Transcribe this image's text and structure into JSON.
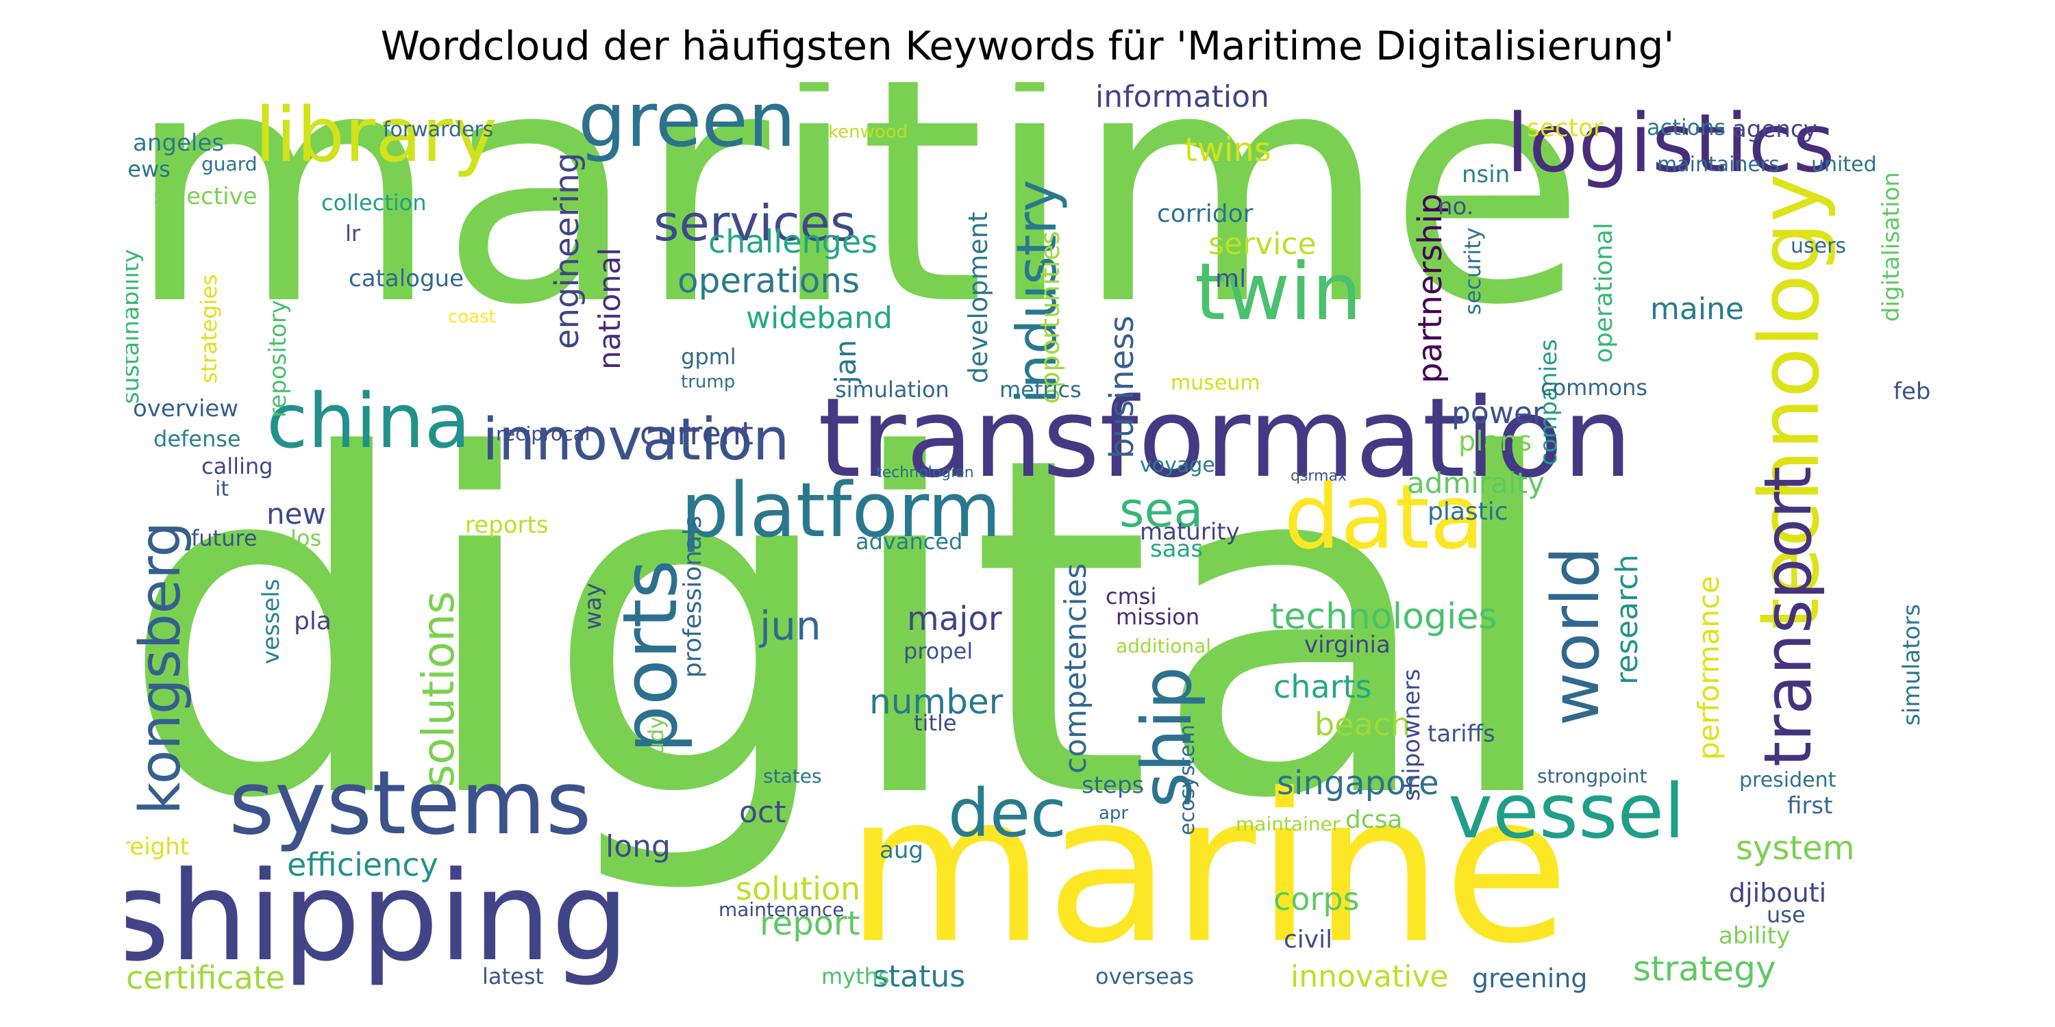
{
  "title": "Wordcloud der häufigsten Keywords für 'Maritime Digitalisierung'",
  "words": [
    {
      "text": "maritime",
      "color": "#7ad151"
    },
    {
      "text": "digital",
      "color": "#7ad151"
    },
    {
      "text": "marine",
      "color": "#fde725"
    },
    {
      "text": "transformation",
      "color": "#443983"
    },
    {
      "text": "shipping",
      "color": "#414487"
    },
    {
      "text": "logistics",
      "color": "#472d7b"
    },
    {
      "text": "technology",
      "color": "#dde318"
    },
    {
      "text": "library",
      "color": "#d2e21b"
    },
    {
      "text": "green",
      "color": "#2c728e"
    },
    {
      "text": "platform",
      "color": "#2a788e"
    },
    {
      "text": "data",
      "color": "#fde725"
    },
    {
      "text": "systems",
      "color": "#3b528b"
    },
    {
      "text": "china",
      "color": "#21918c"
    },
    {
      "text": "twin",
      "color": "#4ac16d"
    },
    {
      "text": "ports",
      "color": "#2d708e"
    },
    {
      "text": "innovation",
      "color": "#3b528b"
    },
    {
      "text": "vessel",
      "color": "#1f9e89"
    },
    {
      "text": "kongsberg",
      "color": "#355f8d"
    },
    {
      "text": "transport",
      "color": "#46337e"
    },
    {
      "text": "world",
      "color": "#31688e"
    },
    {
      "text": "ship",
      "color": "#2c728e"
    },
    {
      "text": "dec",
      "color": "#287c8e"
    },
    {
      "text": "industry",
      "color": "#2a788e"
    },
    {
      "text": "services",
      "color": "#3e4a89"
    },
    {
      "text": "sea",
      "color": "#35b779"
    },
    {
      "text": "solutions",
      "color": "#7ad151"
    },
    {
      "text": "technologies",
      "color": "#4ac16d"
    },
    {
      "text": "operations",
      "color": "#2a788e"
    },
    {
      "text": "challenges",
      "color": "#21a685"
    },
    {
      "text": "wideband",
      "color": "#22a884"
    },
    {
      "text": "information",
      "color": "#414487"
    },
    {
      "text": "twins",
      "color": "#d2e21b"
    },
    {
      "text": "engineering",
      "color": "#414487"
    },
    {
      "text": "national",
      "color": "#472d7b"
    },
    {
      "text": "current",
      "color": "#3e4a89"
    },
    {
      "text": "partnership",
      "color": "#440154"
    },
    {
      "text": "business",
      "color": "#355f8d"
    },
    {
      "text": "development",
      "color": "#2a788e"
    },
    {
      "text": "opportunities",
      "color": "#a0da39"
    },
    {
      "text": "competencies",
      "color": "#31688e"
    },
    {
      "text": "research",
      "color": "#21918c"
    },
    {
      "text": "performance",
      "color": "#dde318"
    },
    {
      "text": "maine",
      "color": "#287c8e"
    },
    {
      "text": "power",
      "color": "#3b528b"
    },
    {
      "text": "plans",
      "color": "#7ad151"
    },
    {
      "text": "admiralty",
      "color": "#5ec962"
    },
    {
      "text": "singapore",
      "color": "#2c728e"
    },
    {
      "text": "number",
      "color": "#2a788e"
    },
    {
      "text": "jun",
      "color": "#31688e"
    },
    {
      "text": "major",
      "color": "#414487"
    },
    {
      "text": "charts",
      "color": "#22a884"
    },
    {
      "text": "beach",
      "color": "#a0da39"
    },
    {
      "text": "corps",
      "color": "#5ec962"
    },
    {
      "text": "system",
      "color": "#7ad151"
    },
    {
      "text": "strategy",
      "color": "#5ec962"
    },
    {
      "text": "status",
      "color": "#287c8e"
    },
    {
      "text": "certificate",
      "color": "#a0da39"
    },
    {
      "text": "efficiency",
      "color": "#21918c"
    },
    {
      "text": "report",
      "color": "#5ec962"
    },
    {
      "text": "solution",
      "color": "#bddf26"
    },
    {
      "text": "innovative",
      "color": "#bddf26"
    },
    {
      "text": "greening",
      "color": "#31688e"
    },
    {
      "text": "oct",
      "color": "#3e4a89"
    },
    {
      "text": "long",
      "color": "#3e4a89"
    },
    {
      "text": "new",
      "color": "#3e4a89"
    },
    {
      "text": "jan",
      "color": "#2a788e"
    },
    {
      "text": "service",
      "color": "#bddf26"
    },
    {
      "text": "corridor",
      "color": "#2c728e"
    },
    {
      "text": "ml",
      "color": "#3b528b"
    },
    {
      "text": "sector",
      "color": "#dde318"
    },
    {
      "text": "actions",
      "color": "#2a788e"
    },
    {
      "text": "agency",
      "color": "#414487"
    },
    {
      "text": "nsin",
      "color": "#26828e"
    },
    {
      "text": "no.",
      "color": "#3b528b"
    },
    {
      "text": "security",
      "color": "#2c728e"
    },
    {
      "text": "companies",
      "color": "#1f9e89"
    },
    {
      "text": "operational",
      "color": "#35b779"
    },
    {
      "text": "digitalisation",
      "color": "#5ec962"
    },
    {
      "text": "users",
      "color": "#31688e"
    },
    {
      "text": "maintainers",
      "color": "#31688e"
    },
    {
      "text": "united",
      "color": "#2c728e"
    },
    {
      "text": "angeles",
      "color": "#2a788e"
    },
    {
      "text": "news",
      "color": "#2c728e"
    },
    {
      "text": "guard",
      "color": "#2c728e"
    },
    {
      "text": "forwarders",
      "color": "#31688e"
    },
    {
      "text": "kenwood",
      "color": "#bddf26"
    },
    {
      "text": "selective",
      "color": "#7ad151"
    },
    {
      "text": "collection",
      "color": "#1f9e89"
    },
    {
      "text": "lr",
      "color": "#3e4a89"
    },
    {
      "text": "catalogue",
      "color": "#31688e"
    },
    {
      "text": "sustainability",
      "color": "#35b779"
    },
    {
      "text": "strategies",
      "color": "#dde318"
    },
    {
      "text": "repository",
      "color": "#4ac16d"
    },
    {
      "text": "coast",
      "color": "#fde725"
    },
    {
      "text": "gpml",
      "color": "#31688e"
    },
    {
      "text": "trump",
      "color": "#2c728e"
    },
    {
      "text": "overview",
      "color": "#355f8d"
    },
    {
      "text": "defense",
      "color": "#26828e"
    },
    {
      "text": "calling",
      "color": "#414487"
    },
    {
      "text": "it",
      "color": "#3b528b"
    },
    {
      "text": "future",
      "color": "#3b528b"
    },
    {
      "text": "los",
      "color": "#7ad151"
    },
    {
      "text": "reports",
      "color": "#bddf26"
    },
    {
      "text": "advanced",
      "color": "#287c8e"
    },
    {
      "text": "maturity",
      "color": "#414487"
    },
    {
      "text": "saas",
      "color": "#22a884"
    },
    {
      "text": "cmsi",
      "color": "#472d7b"
    },
    {
      "text": "mission",
      "color": "#472d7b"
    },
    {
      "text": "propel",
      "color": "#3b528b"
    },
    {
      "text": "additional",
      "color": "#a0da39"
    },
    {
      "text": "virginia",
      "color": "#414487"
    },
    {
      "text": "title",
      "color": "#3e4a89"
    },
    {
      "text": "museum",
      "color": "#d2e21b"
    },
    {
      "text": "commons",
      "color": "#31688e"
    },
    {
      "text": "feb",
      "color": "#3b528b"
    },
    {
      "text": "simulation",
      "color": "#31688e"
    },
    {
      "text": "metrics",
      "color": "#2c728e"
    },
    {
      "text": "voyage",
      "color": "#287c8e"
    },
    {
      "text": "reciprocal",
      "color": "#3e4a89"
    },
    {
      "text": "technologien",
      "color": "#31688e"
    },
    {
      "text": "qsrmax",
      "color": "#3b528b"
    },
    {
      "text": "plastic",
      "color": "#2c728e"
    },
    {
      "text": "pla",
      "color": "#414487"
    },
    {
      "text": "way",
      "color": "#3e4a89"
    },
    {
      "text": "vessels",
      "color": "#26828e"
    },
    {
      "text": "professionals",
      "color": "#31688e"
    },
    {
      "text": "study",
      "color": "#7ad151"
    },
    {
      "text": "tariffs",
      "color": "#3b528b"
    },
    {
      "text": "simulators",
      "color": "#2a788e"
    },
    {
      "text": "steps",
      "color": "#31688e"
    },
    {
      "text": "apr",
      "color": "#31688e"
    },
    {
      "text": "states",
      "color": "#2c728e"
    },
    {
      "text": "strongpoint",
      "color": "#31688e"
    },
    {
      "text": "president",
      "color": "#2c728e"
    },
    {
      "text": "first",
      "color": "#31688e"
    },
    {
      "text": "djibouti",
      "color": "#414487"
    },
    {
      "text": "use",
      "color": "#3b528b"
    },
    {
      "text": "ability",
      "color": "#7ad151"
    },
    {
      "text": "aug",
      "color": "#287c8e"
    },
    {
      "text": "ecosystem",
      "color": "#31688e"
    },
    {
      "text": "maintainer",
      "color": "#a0da39"
    },
    {
      "text": "dcsa",
      "color": "#7ad151"
    },
    {
      "text": "shipowners",
      "color": "#3e4a89"
    },
    {
      "text": "civil",
      "color": "#3e4a89"
    },
    {
      "text": "freight",
      "color": "#dde318"
    },
    {
      "text": "maintenance",
      "color": "#3e4a89"
    },
    {
      "text": "latest",
      "color": "#3b528b"
    },
    {
      "text": "myths",
      "color": "#4ac16d"
    },
    {
      "text": "overseas",
      "color": "#31688e"
    }
  ]
}
